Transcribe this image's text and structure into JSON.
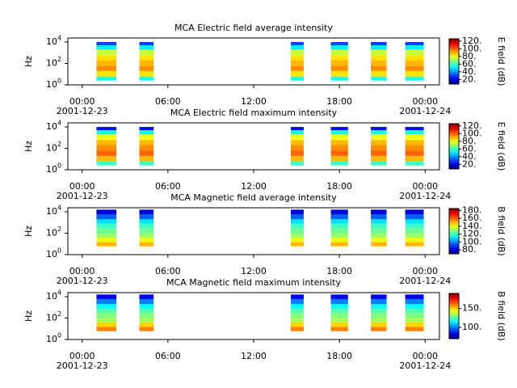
{
  "chart_data": [
    {
      "type": "spectrogram",
      "title": "MCA  Electric field average intensity",
      "ylabel": "Hz",
      "xlim": [
        -1,
        25
      ],
      "xticks": [
        {
          "value": 0,
          "label": [
            "00:00",
            "2001-12-23"
          ]
        },
        {
          "value": 6,
          "label": [
            "06:00"
          ]
        },
        {
          "value": 12,
          "label": [
            "12:00"
          ]
        },
        {
          "value": 18,
          "label": [
            "18:00"
          ]
        },
        {
          "value": 24,
          "label": [
            "00:00",
            "2001-12-24"
          ]
        }
      ],
      "ylog": true,
      "ylim": [
        1,
        24000
      ],
      "yticks": [
        {
          "value": 1,
          "label": "10",
          "exponent": "0"
        },
        {
          "value": 100,
          "label": "10",
          "exponent": "2"
        },
        {
          "value": 10000,
          "label": "10",
          "exponent": "4"
        }
      ],
      "segments": [
        [
          1.0,
          2.4
        ],
        [
          4.0,
          5.0
        ],
        [
          14.6,
          15.5
        ],
        [
          17.4,
          18.6
        ],
        [
          20.2,
          21.3
        ],
        [
          22.6,
          23.9
        ]
      ],
      "bands": [
        2.5,
        6,
        20,
        60,
        200,
        600,
        2000,
        5000,
        10000
      ],
      "z": [
        55,
        85,
        95,
        90,
        85,
        75,
        50,
        30
      ],
      "colormap": "jet",
      "clim": [
        8,
        126
      ],
      "clabel": "E field (dB)",
      "cticks": [
        {
          "value": 20,
          "label": "20."
        },
        {
          "value": 40,
          "label": "40."
        },
        {
          "value": 60,
          "label": "60."
        },
        {
          "value": 80,
          "label": "80."
        },
        {
          "value": 100,
          "label": "100."
        },
        {
          "value": 120,
          "label": "120."
        }
      ]
    },
    {
      "type": "spectrogram",
      "title": "MCA  Electric field maximum intensity",
      "ylabel": "Hz",
      "xlim": [
        -1,
        25
      ],
      "xticks": [
        {
          "value": 0,
          "label": [
            "00:00",
            "2001-12-23"
          ]
        },
        {
          "value": 6,
          "label": [
            "06:00"
          ]
        },
        {
          "value": 12,
          "label": [
            "12:00"
          ]
        },
        {
          "value": 18,
          "label": [
            "18:00"
          ]
        },
        {
          "value": 24,
          "label": [
            "00:00",
            "2001-12-24"
          ]
        }
      ],
      "ylog": true,
      "ylim": [
        1,
        24000
      ],
      "yticks": [
        {
          "value": 1,
          "label": "10",
          "exponent": "0"
        },
        {
          "value": 100,
          "label": "10",
          "exponent": "2"
        },
        {
          "value": 10000,
          "label": "10",
          "exponent": "4"
        }
      ],
      "segments": [
        [
          1.0,
          2.4
        ],
        [
          4.0,
          5.0
        ],
        [
          14.6,
          15.5
        ],
        [
          17.4,
          18.6
        ],
        [
          20.2,
          21.3
        ],
        [
          22.6,
          23.9
        ]
      ],
      "bands": [
        2.5,
        6,
        20,
        60,
        200,
        600,
        2000,
        5000,
        10000
      ],
      "z": [
        60,
        90,
        100,
        95,
        90,
        80,
        55,
        25
      ],
      "colormap": "jet",
      "clim": [
        8,
        126
      ],
      "clabel": "E field (dB)",
      "cticks": [
        {
          "value": 20,
          "label": "20."
        },
        {
          "value": 40,
          "label": "40."
        },
        {
          "value": 60,
          "label": "60."
        },
        {
          "value": 80,
          "label": "80."
        },
        {
          "value": 100,
          "label": "100."
        },
        {
          "value": 120,
          "label": "120."
        }
      ]
    },
    {
      "type": "spectrogram",
      "title": "MCA  Magnetic field average intensity",
      "ylabel": "Hz",
      "xlim": [
        -1,
        25
      ],
      "xticks": [
        {
          "value": 0,
          "label": [
            "00:00",
            "2001-12-23"
          ]
        },
        {
          "value": 6,
          "label": [
            "06:00"
          ]
        },
        {
          "value": 12,
          "label": [
            "12:00"
          ]
        },
        {
          "value": 18,
          "label": [
            "18:00"
          ]
        },
        {
          "value": 24,
          "label": [
            "00:00",
            "2001-12-24"
          ]
        }
      ],
      "ylog": true,
      "ylim": [
        1,
        24000
      ],
      "yticks": [
        {
          "value": 1,
          "label": "10",
          "exponent": "0"
        },
        {
          "value": 100,
          "label": "10",
          "exponent": "2"
        },
        {
          "value": 10000,
          "label": "10",
          "exponent": "4"
        }
      ],
      "segments": [
        [
          1.0,
          2.4
        ],
        [
          4.0,
          5.0
        ],
        [
          14.6,
          15.5
        ],
        [
          17.4,
          18.6
        ],
        [
          20.2,
          21.3
        ],
        [
          22.6,
          23.9
        ]
      ],
      "bands": [
        6,
        15,
        40,
        100,
        300,
        800,
        2000,
        6000,
        16000
      ],
      "z": [
        150,
        140,
        130,
        125,
        120,
        110,
        95,
        80
      ],
      "colormap": "jet",
      "clim": [
        70,
        185
      ],
      "clabel": "B field (dB)",
      "cticks": [
        {
          "value": 80,
          "label": "80."
        },
        {
          "value": 100,
          "label": "100."
        },
        {
          "value": 120,
          "label": "120."
        },
        {
          "value": 140,
          "label": "140."
        },
        {
          "value": 160,
          "label": "160."
        },
        {
          "value": 180,
          "label": "180."
        }
      ]
    },
    {
      "type": "spectrogram",
      "title": "MCA  Magnetic field maximum intensity",
      "ylabel": "Hz",
      "xlim": [
        -1,
        25
      ],
      "xticks": [
        {
          "value": 0,
          "label": [
            "00:00",
            "2001-12-23"
          ]
        },
        {
          "value": 6,
          "label": [
            "06:00"
          ]
        },
        {
          "value": 12,
          "label": [
            "12:00"
          ]
        },
        {
          "value": 18,
          "label": [
            "18:00"
          ]
        },
        {
          "value": 24,
          "label": [
            "00:00",
            "2001-12-24"
          ]
        }
      ],
      "ylog": true,
      "ylim": [
        1,
        24000
      ],
      "yticks": [
        {
          "value": 1,
          "label": "10",
          "exponent": "0"
        },
        {
          "value": 100,
          "label": "10",
          "exponent": "2"
        },
        {
          "value": 10000,
          "label": "10",
          "exponent": "4"
        }
      ],
      "segments": [
        [
          1.0,
          2.4
        ],
        [
          4.0,
          5.0
        ],
        [
          14.6,
          15.5
        ],
        [
          17.4,
          18.6
        ],
        [
          20.2,
          21.3
        ],
        [
          22.6,
          23.9
        ]
      ],
      "bands": [
        6,
        15,
        40,
        100,
        300,
        800,
        2000,
        6000,
        16000
      ],
      "z": [
        160,
        150,
        135,
        130,
        125,
        115,
        100,
        85
      ],
      "colormap": "jet",
      "clim": [
        70,
        190
      ],
      "clabel": "B field (dB)",
      "cticks": [
        {
          "value": 100,
          "label": "100."
        },
        {
          "value": 150,
          "label": "150."
        }
      ]
    }
  ]
}
